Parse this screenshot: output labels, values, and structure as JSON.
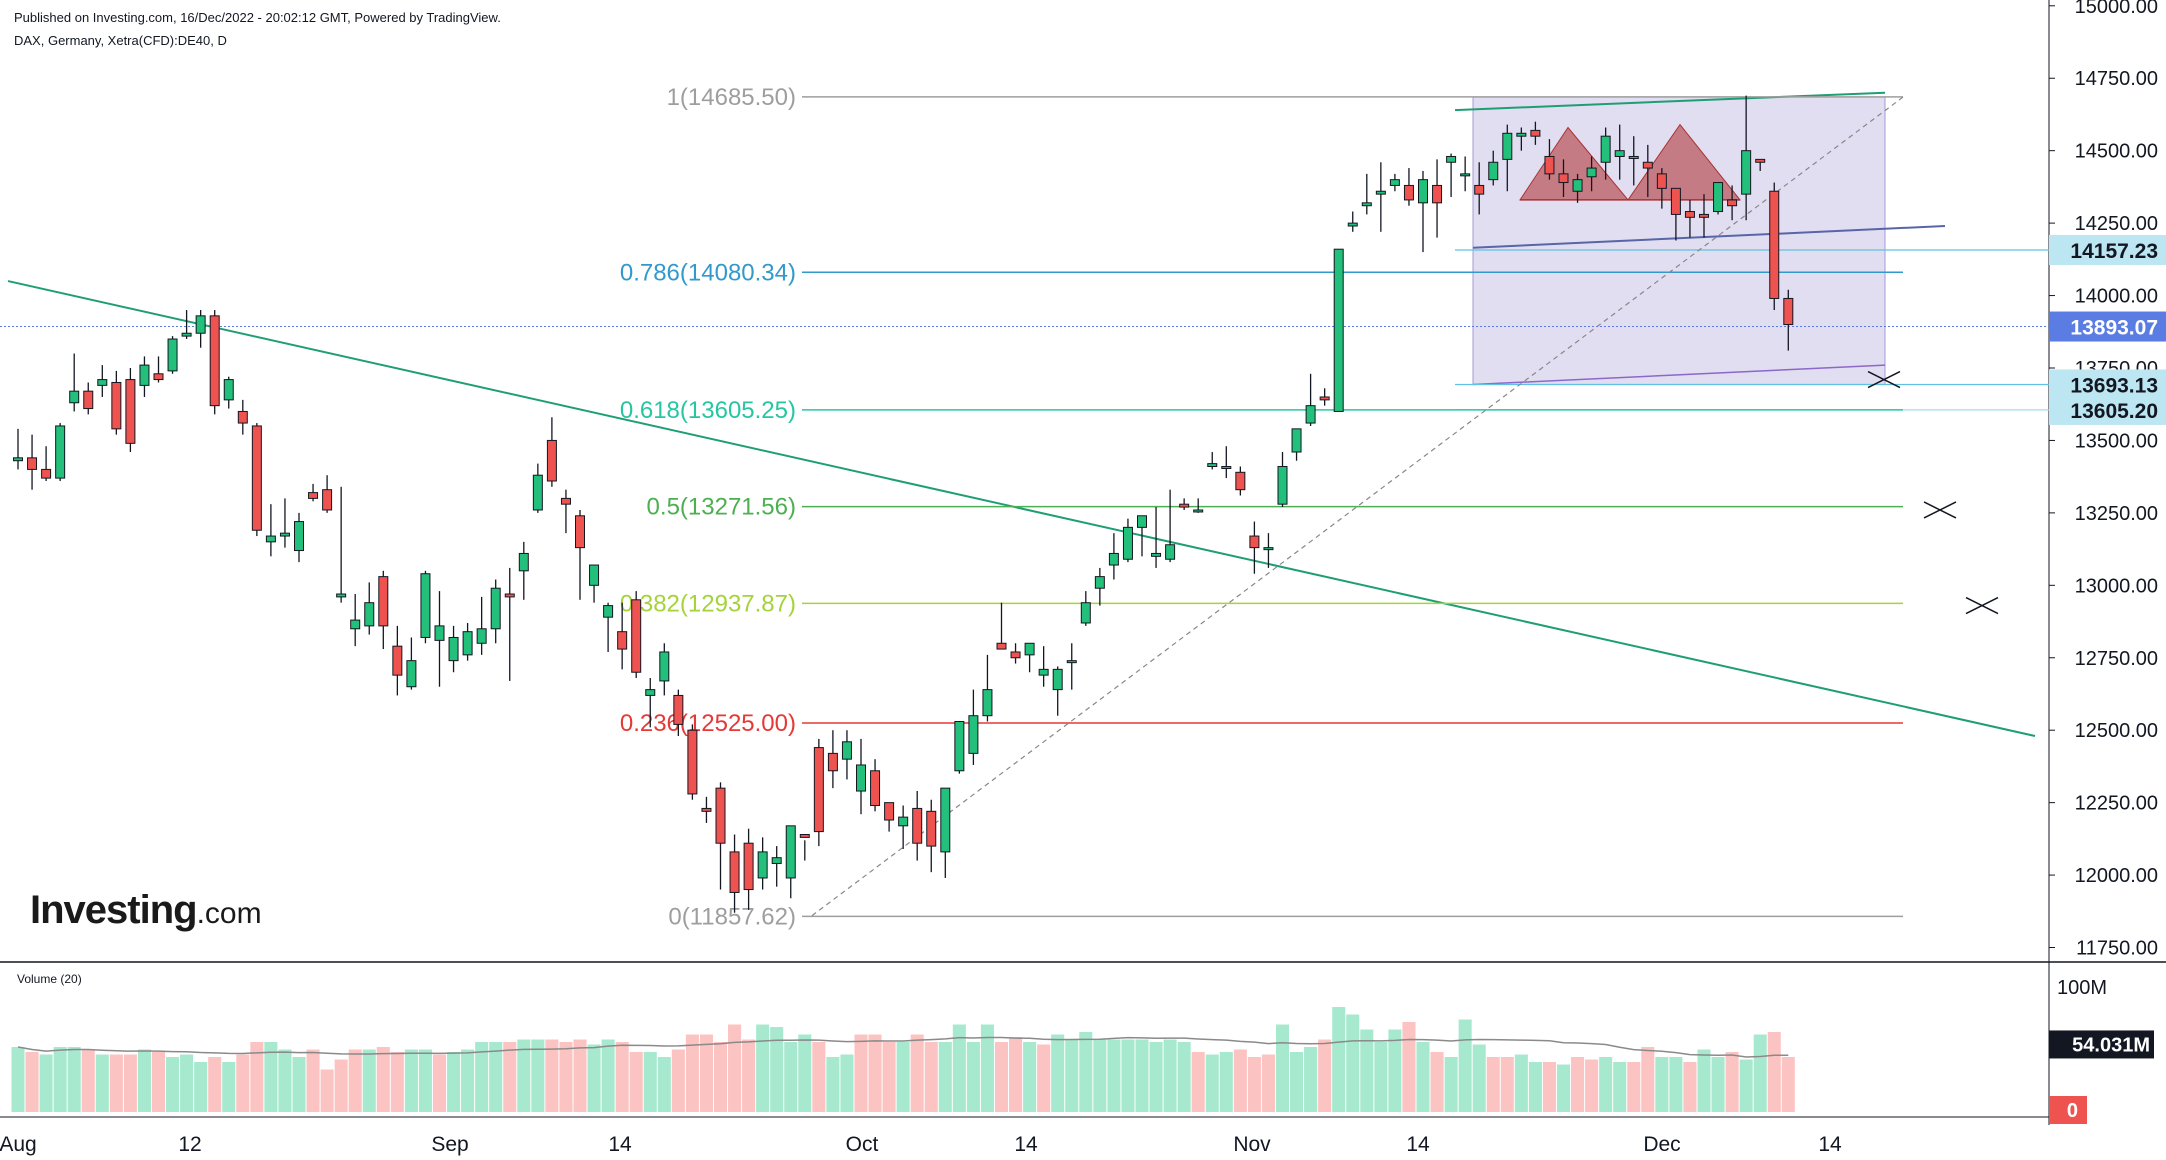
{
  "header": {
    "published": "Published on Investing.com, 16/Dec/2022 - 20:02:12 GMT, Powered by TradingView.",
    "symbol": "DAX, Germany, Xetra(CFD):DE40, D"
  },
  "logo": {
    "main": "Investing",
    "suffix": ".com"
  },
  "volume_label": "Volume (20)",
  "colors": {
    "up": "#22c07a",
    "down": "#ef5350",
    "up_vol": "#a7e9cf",
    "down_vol": "#fbc4c2",
    "fib1": "#9e9e9e",
    "fib786": "#3299cc",
    "fib618": "#26c6a3",
    "fib5": "#4caf50",
    "fib382": "#a4d33a",
    "fib236": "#e53935",
    "fib0": "#9e9e9e",
    "trend": "#1f9e73",
    "channel": "#5866a8",
    "box": "#c8c2e5"
  },
  "chart_data": {
    "type": "candlestick",
    "x_labels": [
      "Aug",
      "12",
      "Sep",
      "14",
      "Oct",
      "14",
      "Nov",
      "14",
      "Dec",
      "14"
    ],
    "y_ticks": [
      "15000.00",
      "14750.00",
      "14500.00",
      "14250.00",
      "14000.00",
      "13750.00",
      "13500.00",
      "13250.00",
      "13000.00",
      "12750.00",
      "12500.00",
      "12250.00",
      "12000.00",
      "11750.00"
    ],
    "ylim": [
      11700,
      15020
    ],
    "price_tags": [
      {
        "label": "14157.23",
        "value": 14157.23,
        "style": "light"
      },
      {
        "label": "13893.07",
        "value": 13893.07,
        "style": "blue"
      },
      {
        "label": "13693.13",
        "value": 13693.13,
        "style": "light"
      },
      {
        "label": "13605.20",
        "value": 13605.2,
        "style": "light"
      }
    ],
    "fibonacci": [
      {
        "label": "1(14685.50)",
        "value": 14685.5,
        "color_key": "fib1"
      },
      {
        "label": "0.786(14080.34)",
        "value": 14080.34,
        "color_key": "fib786"
      },
      {
        "label": "0.618(13605.25)",
        "value": 13605.25,
        "color_key": "fib618"
      },
      {
        "label": "0.5(13271.56)",
        "value": 13271.56,
        "color_key": "fib5"
      },
      {
        "label": "0.382(12937.87)",
        "value": 12937.87,
        "color_key": "fib382"
      },
      {
        "label": "0.236(12525.00)",
        "value": 12525.0,
        "color_key": "fib236"
      },
      {
        "label": "0(11857.62)",
        "value": 11857.62,
        "color_key": "fib0"
      }
    ],
    "candles": [
      [
        13430,
        13540,
        13400,
        13440
      ],
      [
        13440,
        13520,
        13330,
        13400
      ],
      [
        13400,
        13480,
        13360,
        13370
      ],
      [
        13370,
        13560,
        13360,
        13550
      ],
      [
        13630,
        13800,
        13600,
        13670
      ],
      [
        13670,
        13700,
        13590,
        13610
      ],
      [
        13690,
        13760,
        13650,
        13710
      ],
      [
        13700,
        13740,
        13520,
        13540
      ],
      [
        13710,
        13750,
        13460,
        13490
      ],
      [
        13690,
        13790,
        13650,
        13760
      ],
      [
        13730,
        13790,
        13700,
        13710
      ],
      [
        13740,
        13860,
        13730,
        13850
      ],
      [
        13860,
        13950,
        13850,
        13870
      ],
      [
        13870,
        13950,
        13820,
        13930
      ],
      [
        13930,
        13950,
        13590,
        13620
      ],
      [
        13640,
        13720,
        13610,
        13710
      ],
      [
        13600,
        13640,
        13520,
        13560
      ],
      [
        13550,
        13560,
        13170,
        13190
      ],
      [
        13150,
        13280,
        13100,
        13170
      ],
      [
        13170,
        13300,
        13130,
        13180
      ],
      [
        13120,
        13250,
        13080,
        13220
      ],
      [
        13320,
        13350,
        13290,
        13300
      ],
      [
        13330,
        13380,
        13250,
        13260
      ],
      [
        12960,
        13340,
        12940,
        12970
      ],
      [
        12850,
        12970,
        12790,
        12880
      ],
      [
        12860,
        13010,
        12830,
        12940
      ],
      [
        13030,
        13050,
        12780,
        12860
      ],
      [
        12790,
        12860,
        12620,
        12690
      ],
      [
        12650,
        12820,
        12640,
        12740
      ],
      [
        12820,
        13050,
        12800,
        13040
      ],
      [
        12810,
        12980,
        12650,
        12860
      ],
      [
        12740,
        12860,
        12700,
        12820
      ],
      [
        12760,
        12870,
        12740,
        12840
      ],
      [
        12800,
        12960,
        12760,
        12850
      ],
      [
        12850,
        13020,
        12800,
        12990
      ],
      [
        12970,
        13060,
        12670,
        12960
      ],
      [
        13050,
        13150,
        12950,
        13110
      ],
      [
        13260,
        13420,
        13250,
        13380
      ],
      [
        13500,
        13580,
        13340,
        13360
      ],
      [
        13300,
        13330,
        13180,
        13280
      ],
      [
        13240,
        13260,
        12950,
        13130
      ],
      [
        13000,
        13060,
        12940,
        13070
      ],
      [
        12890,
        12940,
        12770,
        12930
      ],
      [
        12840,
        12940,
        12710,
        12780
      ],
      [
        12950,
        12980,
        12680,
        12700
      ],
      [
        12620,
        12680,
        12510,
        12640
      ],
      [
        12670,
        12800,
        12620,
        12770
      ],
      [
        12620,
        12640,
        12480,
        12520
      ],
      [
        12500,
        12520,
        12260,
        12280
      ],
      [
        12230,
        12270,
        12180,
        12220
      ],
      [
        12300,
        12320,
        11950,
        12110
      ],
      [
        12080,
        12140,
        11870,
        11940
      ],
      [
        12110,
        12160,
        11880,
        11950
      ],
      [
        11990,
        12130,
        11950,
        12080
      ],
      [
        12040,
        12100,
        11960,
        12060
      ],
      [
        11990,
        12170,
        11920,
        12170
      ],
      [
        12140,
        12120,
        12050,
        12130
      ],
      [
        12440,
        12470,
        12100,
        12150
      ],
      [
        12420,
        12500,
        12300,
        12360
      ],
      [
        12400,
        12500,
        12330,
        12460
      ],
      [
        12290,
        12470,
        12210,
        12380
      ],
      [
        12360,
        12400,
        12220,
        12240
      ],
      [
        12250,
        12250,
        12150,
        12190
      ],
      [
        12170,
        12240,
        12090,
        12200
      ],
      [
        12230,
        12290,
        12050,
        12110
      ],
      [
        12220,
        12260,
        12010,
        12100
      ],
      [
        12080,
        12300,
        11990,
        12300
      ],
      [
        12360,
        12530,
        12350,
        12530
      ],
      [
        12420,
        12640,
        12380,
        12550
      ],
      [
        12550,
        12760,
        12530,
        12640
      ],
      [
        12800,
        12940,
        12780,
        12780
      ],
      [
        12770,
        12800,
        12730,
        12750
      ],
      [
        12760,
        12800,
        12700,
        12800
      ],
      [
        12690,
        12790,
        12650,
        12710
      ],
      [
        12640,
        12720,
        12550,
        12710
      ],
      [
        12740,
        12800,
        12640,
        12740
      ],
      [
        12870,
        12980,
        12860,
        12940
      ],
      [
        12990,
        13060,
        12930,
        13030
      ],
      [
        13070,
        13180,
        13020,
        13110
      ],
      [
        13090,
        13230,
        13080,
        13200
      ],
      [
        13200,
        13240,
        13100,
        13240
      ],
      [
        13100,
        13270,
        13060,
        13110
      ],
      [
        13090,
        13330,
        13080,
        13140
      ],
      [
        13280,
        13300,
        13260,
        13270
      ],
      [
        13260,
        13300,
        13250,
        13260
      ],
      [
        13410,
        13460,
        13400,
        13420
      ],
      [
        13410,
        13480,
        13370,
        13410
      ],
      [
        13390,
        13410,
        13310,
        13330
      ],
      [
        13170,
        13220,
        13040,
        13130
      ],
      [
        13130,
        13180,
        13060,
        13130
      ],
      [
        13280,
        13460,
        13270,
        13410
      ],
      [
        13460,
        13540,
        13430,
        13540
      ],
      [
        13560,
        13730,
        13550,
        13620
      ],
      [
        13650,
        13680,
        13620,
        13640
      ],
      [
        13600,
        14160,
        13600,
        14160
      ],
      [
        14240,
        14290,
        14220,
        14250
      ],
      [
        14310,
        14420,
        14280,
        14320
      ],
      [
        14350,
        14460,
        14220,
        14360
      ],
      [
        14380,
        14420,
        14360,
        14400
      ],
      [
        14380,
        14440,
        14310,
        14330
      ],
      [
        14320,
        14430,
        14150,
        14400
      ],
      [
        14380,
        14470,
        14200,
        14320
      ],
      [
        14460,
        14490,
        14340,
        14480
      ],
      [
        14420,
        14480,
        14360,
        14420
      ],
      [
        14380,
        14460,
        14280,
        14350
      ],
      [
        14400,
        14500,
        14380,
        14460
      ],
      [
        14470,
        14590,
        14360,
        14560
      ],
      [
        14550,
        14580,
        14500,
        14560
      ],
      [
        14570,
        14600,
        14520,
        14550
      ],
      [
        14480,
        14540,
        14400,
        14420
      ],
      [
        14420,
        14470,
        14340,
        14390
      ],
      [
        14360,
        14420,
        14320,
        14400
      ],
      [
        14410,
        14480,
        14360,
        14440
      ],
      [
        14460,
        14580,
        14400,
        14550
      ],
      [
        14480,
        14590,
        14400,
        14500
      ],
      [
        14480,
        14550,
        14380,
        14480
      ],
      [
        14460,
        14520,
        14340,
        14440
      ],
      [
        14420,
        14440,
        14300,
        14370
      ],
      [
        14370,
        14350,
        14190,
        14280
      ],
      [
        14290,
        14330,
        14200,
        14270
      ],
      [
        14280,
        14350,
        14200,
        14270
      ],
      [
        14290,
        14390,
        14280,
        14390
      ],
      [
        14330,
        14380,
        14260,
        14310
      ],
      [
        14350,
        14690,
        14260,
        14500
      ],
      [
        14470,
        14470,
        14430,
        14460
      ],
      [
        14360,
        14390,
        13950,
        13990
      ],
      [
        13990,
        14020,
        13810,
        13900
      ]
    ],
    "volumes": [
      52,
      48,
      46,
      52,
      52,
      50,
      46,
      46,
      46,
      50,
      48,
      44,
      46,
      40,
      44,
      40,
      46,
      56,
      56,
      50,
      44,
      50,
      34,
      42,
      50,
      50,
      52,
      48,
      50,
      50,
      46,
      48,
      50,
      56,
      56,
      56,
      58,
      58,
      58,
      56,
      58,
      54,
      58,
      56,
      48,
      48,
      44,
      50,
      62,
      62,
      56,
      70,
      58,
      70,
      68,
      56,
      62,
      56,
      44,
      46,
      62,
      62,
      56,
      56,
      62,
      56,
      56,
      70,
      56,
      70,
      56,
      60,
      56,
      54,
      62,
      58,
      64,
      58,
      58,
      58,
      58,
      56,
      58,
      56,
      48,
      46,
      48,
      50,
      44,
      46,
      70,
      48,
      52,
      58,
      84,
      78,
      66,
      56,
      66,
      72,
      56,
      48,
      44,
      74,
      54,
      44,
      44,
      46,
      40,
      40,
      38,
      44,
      42,
      44,
      40,
      40,
      52,
      44,
      44,
      40,
      50,
      44,
      48,
      42,
      62,
      64,
      44
    ],
    "volume_down": [
      0,
      1,
      0,
      0,
      0,
      1,
      0,
      1,
      1,
      0,
      1,
      0,
      0,
      0,
      1,
      0,
      1,
      1,
      0,
      0,
      0,
      1,
      1,
      1,
      1,
      0,
      1,
      1,
      0,
      0,
      1,
      0,
      0,
      0,
      0,
      1,
      0,
      0,
      1,
      1,
      1,
      0,
      0,
      1,
      1,
      0,
      0,
      1,
      1,
      1,
      1,
      1,
      1,
      0,
      0,
      0,
      0,
      1,
      0,
      0,
      1,
      1,
      1,
      0,
      1,
      1,
      0,
      0,
      0,
      0,
      1,
      1,
      0,
      1,
      0,
      0,
      0,
      0,
      0,
      0,
      0,
      0,
      0,
      0,
      1,
      0,
      0,
      1,
      1,
      1,
      0,
      0,
      0,
      1,
      0,
      0,
      0,
      0,
      0,
      1,
      0,
      1,
      0,
      0,
      0,
      1,
      1,
      0,
      0,
      1,
      0,
      1,
      1,
      0,
      0,
      1,
      1,
      0,
      0,
      1,
      0,
      0,
      1,
      0,
      0,
      1,
      1
    ],
    "volume_ma": 54.031,
    "volume_ticks": [
      {
        "label": "100M",
        "value": 100
      }
    ],
    "volume_tags": [
      {
        "label": "54.031M",
        "value": 54.031,
        "style": "dark"
      },
      {
        "label": "0",
        "value": 0,
        "style": "red"
      }
    ],
    "volume_ylim": [
      0,
      120
    ]
  }
}
